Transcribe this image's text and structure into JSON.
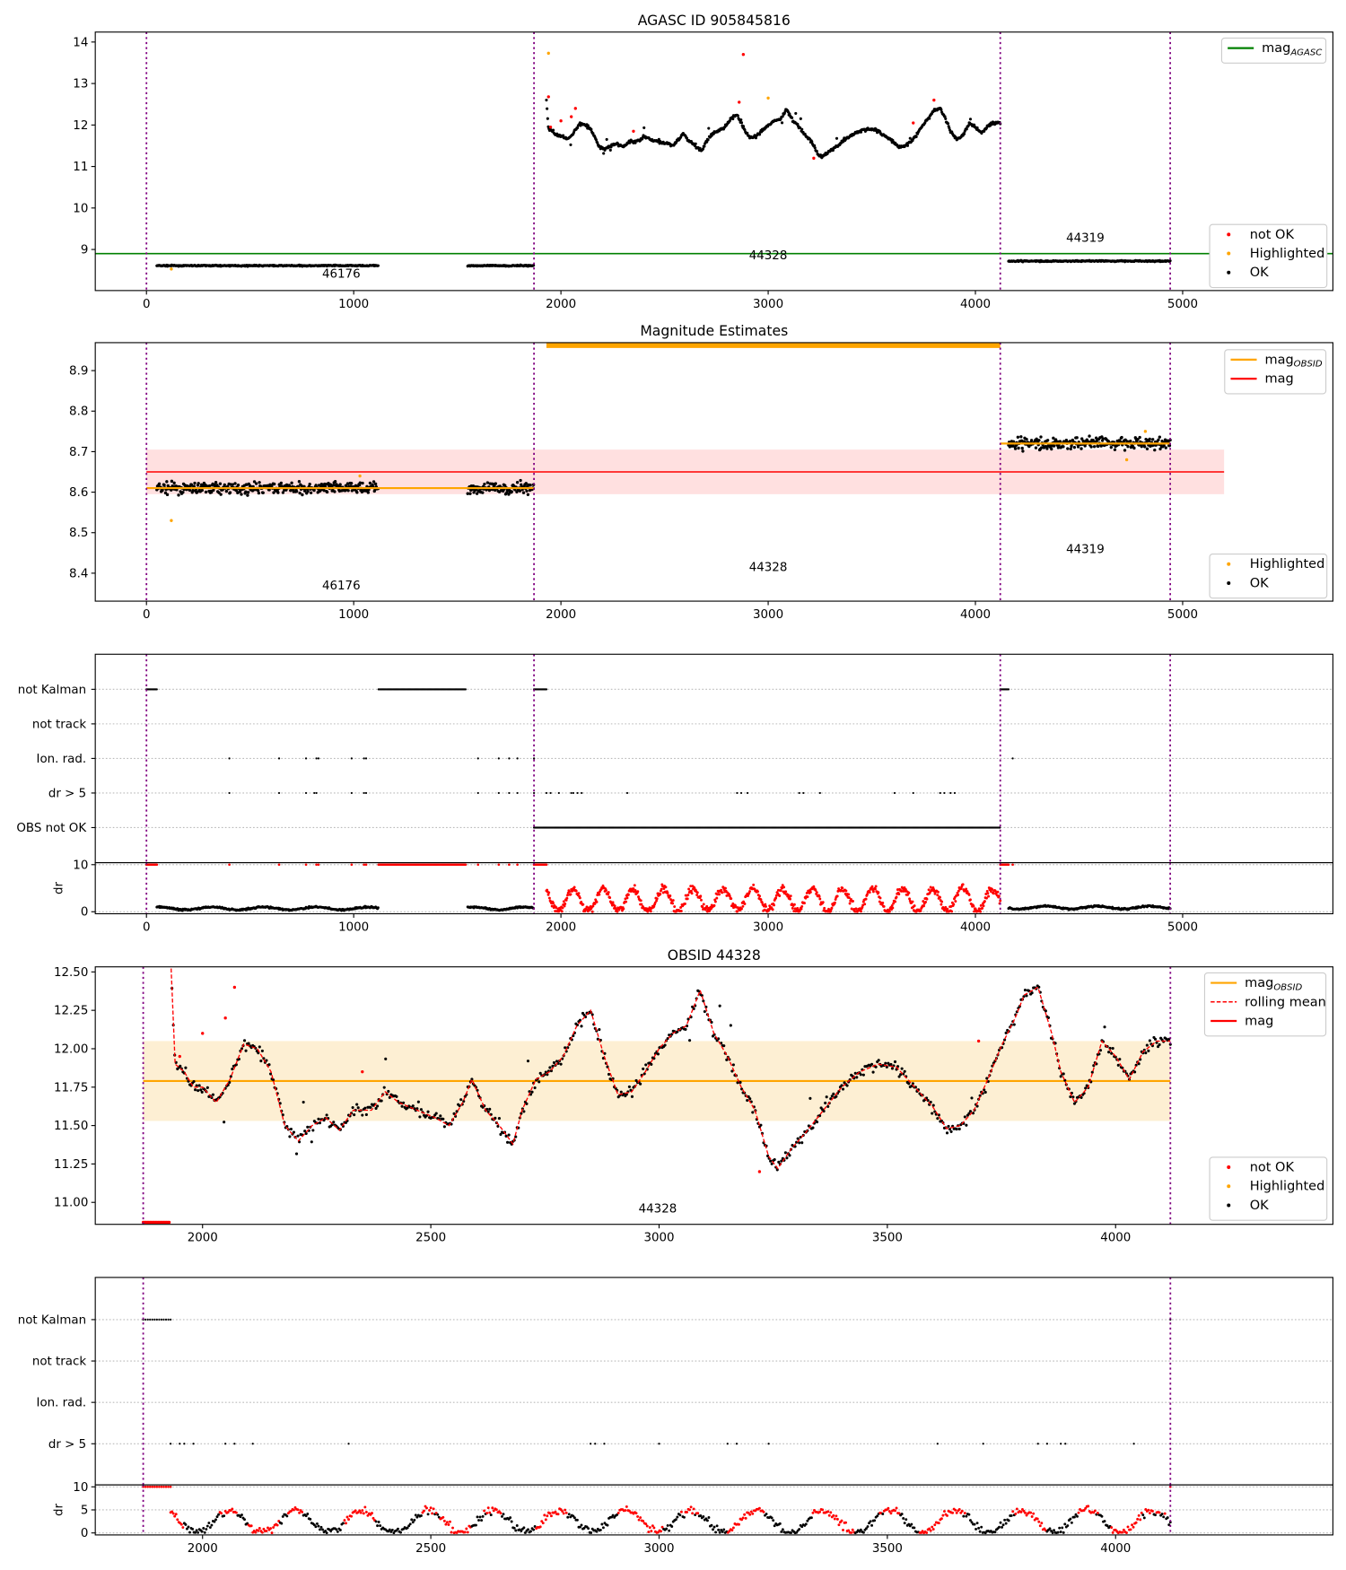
{
  "chart_data": {
    "type": "scatter",
    "colors": {
      "ok": "#000000",
      "not_ok": "#ff0000",
      "highlighted": "#ffa500",
      "agasc": "#008000",
      "mag": "#ff0000",
      "mag_obsid": "#ffa500",
      "obs_boundary": "#800080",
      "mag_band": "#ffcccc",
      "obsid_band": "#fdebc8"
    },
    "obs_boundaries": [
      0,
      1870,
      4120,
      4940
    ],
    "mag_agasc": 8.9,
    "mag": 8.65,
    "mag_std": 0.055,
    "obsids": [
      {
        "obsid": "46176",
        "ranges": [
          [
            50,
            1120
          ],
          [
            1550,
            1870
          ]
        ],
        "mag_obsid": 8.61,
        "noise": 0.012,
        "dr": 0.7
      },
      {
        "obsid": "44328",
        "ranges": [
          [
            1930,
            4120
          ]
        ],
        "mag_obsid": 11.79,
        "mag_obsid_std": 0.26,
        "noise": 0.03,
        "dr": 2.5
      },
      {
        "obsid": "44319",
        "ranges": [
          [
            4160,
            4940
          ]
        ],
        "mag_obsid": 8.72,
        "noise": 0.012,
        "dr": 0.9
      }
    ],
    "obsid_44328_profile": [
      [
        1930,
        12.6
      ],
      [
        1940,
        11.9
      ],
      [
        1960,
        11.85
      ],
      [
        1980,
        11.75
      ],
      [
        2000,
        11.75
      ],
      [
        2030,
        11.65
      ],
      [
        2060,
        11.8
      ],
      [
        2090,
        12.03
      ],
      [
        2120,
        12.0
      ],
      [
        2150,
        11.85
      ],
      [
        2180,
        11.5
      ],
      [
        2210,
        11.4
      ],
      [
        2240,
        11.5
      ],
      [
        2270,
        11.55
      ],
      [
        2300,
        11.47
      ],
      [
        2330,
        11.6
      ],
      [
        2370,
        11.6
      ],
      [
        2400,
        11.72
      ],
      [
        2430,
        11.65
      ],
      [
        2470,
        11.6
      ],
      [
        2510,
        11.55
      ],
      [
        2540,
        11.5
      ],
      [
        2570,
        11.65
      ],
      [
        2590,
        11.8
      ],
      [
        2620,
        11.6
      ],
      [
        2650,
        11.5
      ],
      [
        2680,
        11.38
      ],
      [
        2700,
        11.6
      ],
      [
        2730,
        11.8
      ],
      [
        2760,
        11.85
      ],
      [
        2790,
        11.95
      ],
      [
        2820,
        12.15
      ],
      [
        2850,
        12.25
      ],
      [
        2880,
        11.95
      ],
      [
        2910,
        11.7
      ],
      [
        2940,
        11.72
      ],
      [
        2970,
        11.85
      ],
      [
        3000,
        12.0
      ],
      [
        3030,
        12.1
      ],
      [
        3060,
        12.15
      ],
      [
        3090,
        12.38
      ],
      [
        3120,
        12.1
      ],
      [
        3150,
        11.95
      ],
      [
        3180,
        11.75
      ],
      [
        3210,
        11.6
      ],
      [
        3240,
        11.3
      ],
      [
        3260,
        11.22
      ],
      [
        3290,
        11.35
      ],
      [
        3320,
        11.45
      ],
      [
        3360,
        11.6
      ],
      [
        3400,
        11.75
      ],
      [
        3440,
        11.85
      ],
      [
        3480,
        11.9
      ],
      [
        3520,
        11.88
      ],
      [
        3560,
        11.75
      ],
      [
        3600,
        11.62
      ],
      [
        3630,
        11.48
      ],
      [
        3660,
        11.5
      ],
      [
        3690,
        11.6
      ],
      [
        3720,
        11.8
      ],
      [
        3750,
        12.02
      ],
      [
        3780,
        12.2
      ],
      [
        3800,
        12.35
      ],
      [
        3830,
        12.4
      ],
      [
        3860,
        12.1
      ],
      [
        3880,
        11.85
      ],
      [
        3910,
        11.65
      ],
      [
        3940,
        11.75
      ],
      [
        3970,
        12.05
      ],
      [
        4000,
        11.95
      ],
      [
        4030,
        11.8
      ],
      [
        4060,
        11.98
      ],
      [
        4090,
        12.05
      ],
      [
        4120,
        12.05
      ]
    ],
    "not_ok_points": [
      [
        1940,
        12.68
      ],
      [
        1950,
        11.95
      ],
      [
        2000,
        12.1
      ],
      [
        2050,
        12.2
      ],
      [
        2070,
        12.4
      ],
      [
        2350,
        11.85
      ],
      [
        2860,
        12.55
      ],
      [
        2880,
        13.7
      ],
      [
        3220,
        11.2
      ],
      [
        3700,
        12.05
      ],
      [
        3800,
        12.6
      ]
    ],
    "highlighted_points": [
      [
        1940,
        13.73
      ],
      [
        3000,
        12.65
      ],
      [
        120,
        8.53
      ],
      [
        1030,
        8.64
      ],
      [
        4730,
        8.68
      ],
      [
        4820,
        8.75
      ]
    ],
    "flags": {
      "not_kalman": [
        [
          0,
          50
        ],
        [
          1120,
          1540
        ],
        [
          1870,
          1930
        ],
        [
          4120,
          4160
        ]
      ],
      "ion_rad": [
        400,
        640,
        770,
        820,
        830,
        990,
        1050,
        1060,
        1600,
        1700,
        1750,
        1790,
        1870,
        4180
      ],
      "dr_gt_5": [
        400,
        640,
        770,
        810,
        820,
        990,
        1050,
        1060,
        1600,
        1700,
        1750,
        1790,
        1870,
        1930,
        1950,
        1990,
        2050,
        2060,
        2080,
        2100,
        2320,
        2850,
        2870,
        2900,
        3150,
        3170,
        3250,
        3610,
        3700,
        3830,
        3850,
        3880,
        3900
      ],
      "dr_gt_5_obsid": [
        1930,
        1950,
        1960,
        1980,
        2050,
        2070,
        2110,
        2320,
        2850,
        2860,
        2880,
        3000,
        3150,
        3170,
        3240,
        3610,
        3710,
        3830,
        3850,
        3880,
        3890,
        4040
      ],
      "obs_not_ok": [
        [
          1870,
          4120
        ]
      ]
    },
    "panels": [
      {
        "title": "AGASC ID 905845816",
        "xlim": [
          -247,
          5725
        ],
        "ylim": [
          8.01,
          14.24
        ],
        "xticks": [
          0,
          1000,
          2000,
          3000,
          4000,
          5000
        ],
        "yticks": [
          9,
          10,
          11,
          12,
          13,
          14
        ],
        "legend_top": [
          {
            "label": "mag",
            "sub": "AGASC",
            "kind": "line",
            "color": "#008000"
          }
        ],
        "legend_bottom": [
          {
            "label": "not OK",
            "color": "#ff0000"
          },
          {
            "label": "Highlighted",
            "color": "#ffa500"
          },
          {
            "label": "OK",
            "color": "#000000"
          }
        ],
        "annotations": [
          {
            "text": "46176",
            "x": 940,
            "y": 8.32
          },
          {
            "text": "44328",
            "x": 3000,
            "y": 8.76
          },
          {
            "text": "44319",
            "x": 4530,
            "y": 9.19
          }
        ]
      },
      {
        "title": "Magnitude Estimates",
        "xlim": [
          -247,
          5725
        ],
        "ylim": [
          8.331,
          8.969
        ],
        "xticks": [
          0,
          1000,
          2000,
          3000,
          4000,
          5000
        ],
        "yticks": [
          "8.4",
          "8.5",
          "8.6",
          "8.7",
          "8.8",
          "8.9"
        ],
        "legend_top": [
          {
            "label": "mag",
            "sub": "OBSID",
            "kind": "line",
            "color": "#ffa500"
          },
          {
            "label": "mag",
            "sub": "",
            "kind": "line",
            "color": "#ff0000"
          }
        ],
        "legend_bottom": [
          {
            "label": "Highlighted",
            "color": "#ffa500"
          },
          {
            "label": "OK",
            "color": "#000000"
          }
        ],
        "annotations": [
          {
            "text": "46176",
            "x": 940,
            "y": 8.36
          },
          {
            "text": "44328",
            "x": 3000,
            "y": 8.405
          },
          {
            "text": "44319",
            "x": 4530,
            "y": 8.45
          }
        ]
      },
      {
        "title": "",
        "flag_labels": [
          "OBS not OK",
          "dr > 5",
          "Ion. rad.",
          "not track",
          "not Kalman"
        ],
        "dr_label": "dr",
        "dr_yticks": [
          "0",
          "10"
        ],
        "xticks": [
          0,
          1000,
          2000,
          3000,
          4000,
          5000
        ]
      },
      {
        "title": "OBSID 44328",
        "xlim": [
          1765,
          4476
        ],
        "ylim": [
          10.857,
          12.533
        ],
        "xticks": [
          2000,
          2500,
          3000,
          3500,
          4000
        ],
        "yticks": [
          "11.00",
          "11.25",
          "11.50",
          "11.75",
          "12.00",
          "12.25",
          "12.50"
        ],
        "legend_top": [
          {
            "label": "mag",
            "sub": "OBSID",
            "kind": "line",
            "color": "#ffa500"
          },
          {
            "label": "rolling mean",
            "sub": "",
            "kind": "dash",
            "color": "#ff0000"
          },
          {
            "label": "mag",
            "sub": "",
            "kind": "line",
            "color": "#ff0000"
          }
        ],
        "legend_bottom": [
          {
            "label": "not OK",
            "color": "#ff0000"
          },
          {
            "label": "Highlighted",
            "color": "#ffa500"
          },
          {
            "label": "OK",
            "color": "#000000"
          }
        ],
        "annotations": [
          {
            "text": "44328",
            "x": 2997,
            "y": 10.935
          }
        ]
      },
      {
        "title": "",
        "flag_labels": [
          "dr > 5",
          "Ion. rad.",
          "not track",
          "not Kalman"
        ],
        "dr_label": "dr",
        "dr_yticks": [
          "0",
          "5",
          "10"
        ],
        "xticks": [
          2000,
          2500,
          3000,
          3500,
          4000
        ]
      }
    ]
  }
}
